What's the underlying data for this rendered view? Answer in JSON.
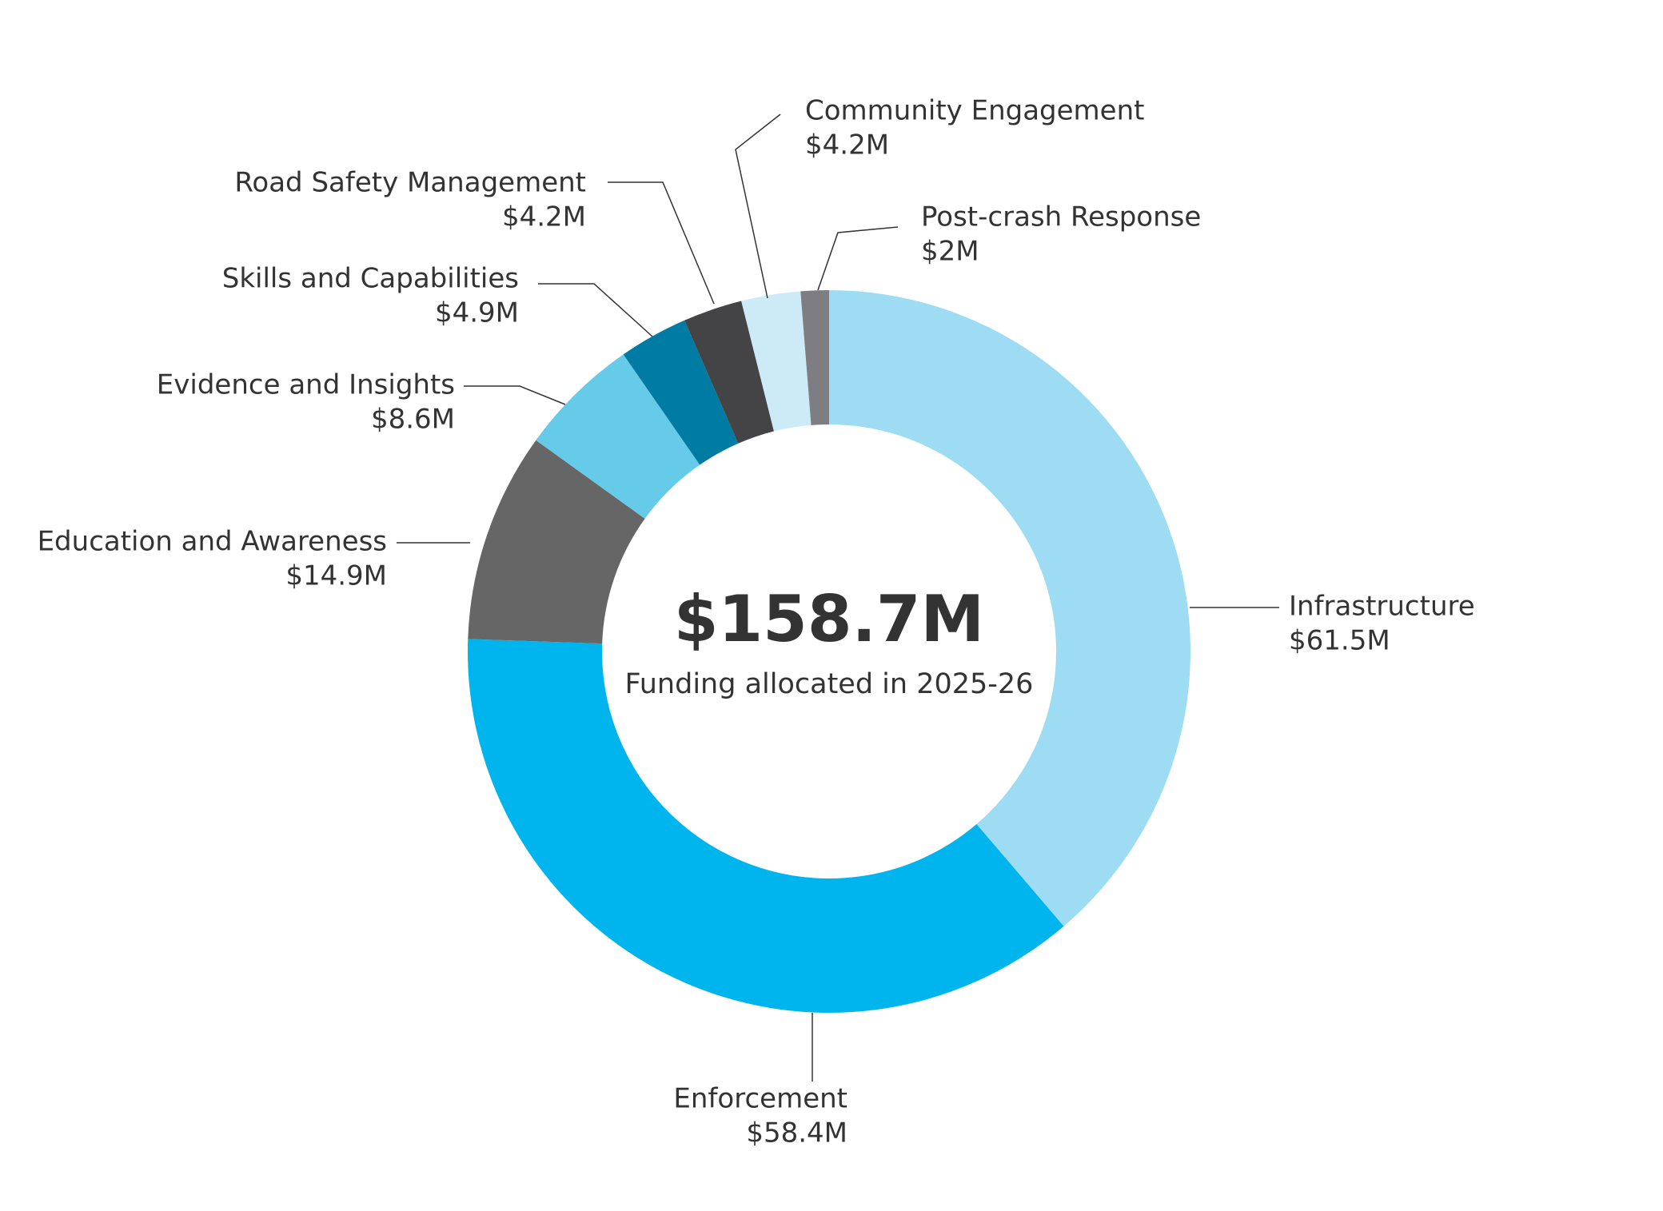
{
  "chart_data": {
    "type": "donut",
    "center_title": "$158.7M",
    "center_subtitle": "Funding allocated in 2025-26",
    "categories": [
      "Infrastructure",
      "Enforcement",
      "Education and Awareness",
      "Evidence and Insights",
      "Skills and Capabilities",
      "Road Safety Management",
      "Community Engagement",
      "Post-crash Response"
    ],
    "values": [
      61.5,
      58.4,
      14.9,
      8.6,
      4.9,
      4.2,
      4.2,
      2
    ],
    "value_labels": [
      "$61.5M",
      "$58.4M",
      "$14.9M",
      "$8.6M",
      "$4.9M",
      "$4.2M",
      "$4.2M",
      "$2M"
    ],
    "colors": [
      "#9ddcf2",
      "#00b4ee",
      "#666666",
      "#66cbe8",
      "#007ba3",
      "#444447",
      "#cdeaf7",
      "#7d7d82"
    ]
  }
}
